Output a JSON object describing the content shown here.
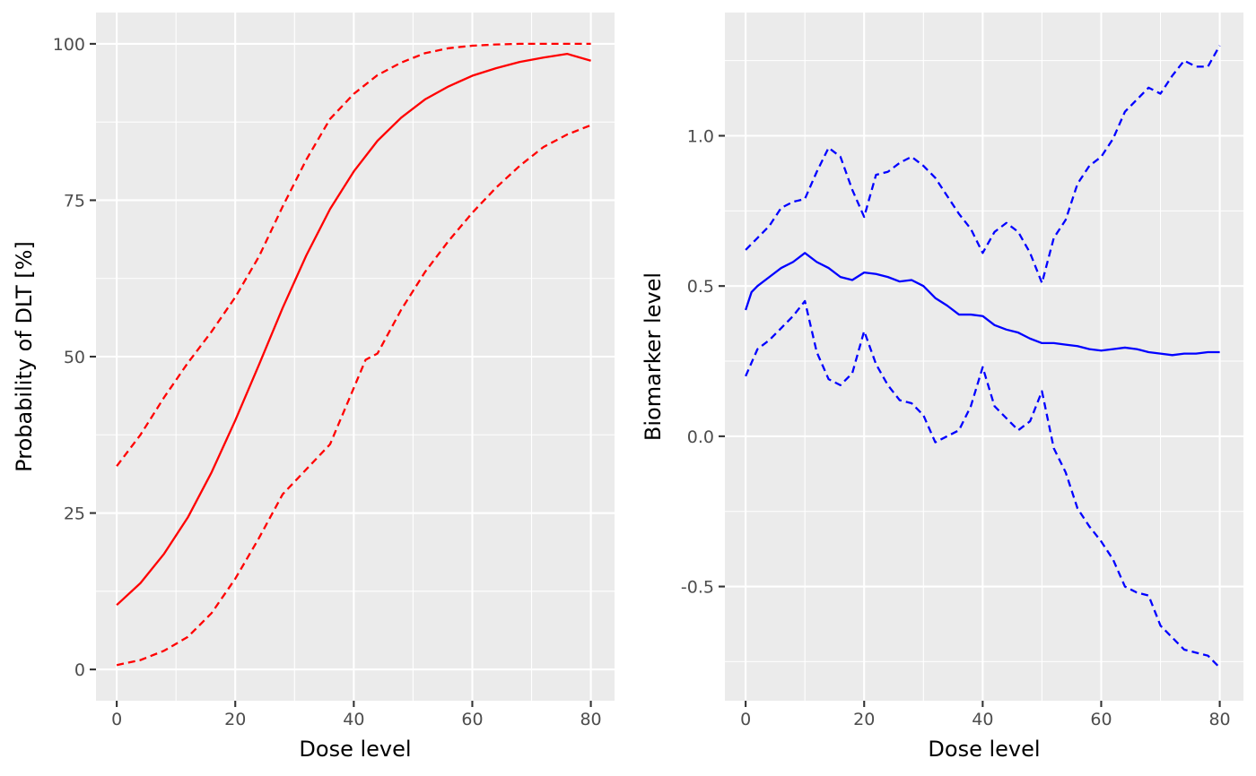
{
  "chart_data": [
    {
      "type": "line",
      "xlabel": "Dose level",
      "ylabel": "Probability of DLT [%]",
      "xlim": [
        -3.5,
        84
      ],
      "ylim": [
        -5,
        105
      ],
      "x_ticks": [
        0,
        20,
        40,
        60,
        80
      ],
      "y_ticks": [
        0,
        25,
        50,
        75,
        100
      ],
      "x_tick_labels": [
        "0",
        "20",
        "40",
        "60",
        "80"
      ],
      "y_tick_labels": [
        "0",
        "25",
        "50",
        "75",
        "100"
      ],
      "grid": true,
      "legend": "none",
      "color": "#ff0000",
      "series": [
        {
          "style": "solid",
          "x": [
            0,
            4,
            8,
            12,
            16,
            20,
            24,
            28,
            32,
            36,
            40,
            44,
            48,
            52,
            56,
            60,
            64,
            68,
            72,
            76,
            80
          ],
          "values": [
            10.3,
            13.8,
            18.5,
            24.3,
            31.5,
            39.8,
            48.7,
            57.8,
            66.2,
            73.6,
            79.6,
            84.5,
            88.2,
            91.1,
            93.2,
            94.9,
            96.1,
            97.1,
            97.8,
            98.4,
            97.3
          ]
        },
        {
          "style": "dashed",
          "x": [
            0,
            4,
            8,
            12,
            16,
            20,
            24,
            28,
            32,
            36,
            40,
            44,
            48,
            52,
            56,
            60,
            64,
            68,
            72,
            76,
            80
          ],
          "values": [
            32.5,
            37.5,
            43.5,
            49.0,
            54.0,
            59.5,
            66.0,
            74.0,
            81.5,
            88.0,
            92.0,
            95.0,
            97.0,
            98.5,
            99.3,
            99.7,
            99.9,
            100.0,
            100.0,
            100.0,
            100.0
          ]
        },
        {
          "style": "dashed",
          "x": [
            0,
            4,
            8,
            12,
            16,
            20,
            24,
            28,
            32,
            36,
            40,
            42,
            44,
            48,
            52,
            56,
            60,
            64,
            68,
            72,
            76,
            80
          ],
          "values": [
            0.7,
            1.5,
            3.0,
            5.2,
            9.0,
            14.5,
            21.0,
            28.0,
            32.0,
            36.0,
            45.0,
            49.5,
            50.5,
            57.5,
            63.5,
            68.5,
            73.0,
            77.0,
            80.5,
            83.5,
            85.5,
            87.0
          ]
        }
      ]
    },
    {
      "type": "line",
      "xlabel": "Dose level",
      "ylabel": "Biomarker level",
      "xlim": [
        -3.5,
        84
      ],
      "ylim": [
        -0.88,
        1.41
      ],
      "x_ticks": [
        0,
        20,
        40,
        60,
        80
      ],
      "y_ticks": [
        -0.5,
        0.0,
        0.5,
        1.0
      ],
      "x_tick_labels": [
        "0",
        "20",
        "40",
        "60",
        "80"
      ],
      "y_tick_labels": [
        "-0.5",
        "0.0",
        "0.5",
        "1.0"
      ],
      "grid": true,
      "legend": "none",
      "color": "#0000ff",
      "series": [
        {
          "style": "solid",
          "x": [
            0,
            1,
            2,
            4,
            6,
            8,
            10,
            12,
            14,
            16,
            18,
            20,
            22,
            24,
            26,
            28,
            30,
            32,
            34,
            36,
            38,
            40,
            42,
            44,
            46,
            48,
            50,
            52,
            54,
            56,
            58,
            60,
            62,
            64,
            66,
            68,
            70,
            72,
            74,
            76,
            78,
            80
          ],
          "values": [
            0.42,
            0.48,
            0.5,
            0.53,
            0.56,
            0.58,
            0.61,
            0.58,
            0.56,
            0.53,
            0.52,
            0.545,
            0.54,
            0.53,
            0.515,
            0.52,
            0.5,
            0.46,
            0.435,
            0.405,
            0.405,
            0.4,
            0.37,
            0.355,
            0.345,
            0.325,
            0.31,
            0.31,
            0.305,
            0.3,
            0.29,
            0.285,
            0.29,
            0.295,
            0.29,
            0.28,
            0.275,
            0.27,
            0.275,
            0.275,
            0.28,
            0.28
          ]
        },
        {
          "style": "dashed",
          "x": [
            0,
            2,
            4,
            6,
            8,
            10,
            12,
            14,
            16,
            18,
            20,
            22,
            24,
            26,
            28,
            30,
            32,
            34,
            36,
            38,
            40,
            42,
            44,
            46,
            48,
            50,
            52,
            54,
            56,
            58,
            60,
            62,
            64,
            66,
            68,
            70,
            72,
            74,
            76,
            78,
            80
          ],
          "values": [
            0.62,
            0.66,
            0.7,
            0.76,
            0.78,
            0.79,
            0.88,
            0.96,
            0.93,
            0.82,
            0.73,
            0.87,
            0.88,
            0.91,
            0.93,
            0.9,
            0.86,
            0.8,
            0.74,
            0.69,
            0.61,
            0.68,
            0.71,
            0.68,
            0.61,
            0.51,
            0.66,
            0.72,
            0.84,
            0.9,
            0.93,
            0.99,
            1.08,
            1.12,
            1.16,
            1.14,
            1.2,
            1.25,
            1.23,
            1.23,
            1.3
          ]
        },
        {
          "style": "dashed",
          "x": [
            0,
            2,
            4,
            6,
            8,
            10,
            12,
            14,
            16,
            18,
            20,
            22,
            24,
            26,
            28,
            30,
            32,
            34,
            36,
            38,
            40,
            42,
            44,
            46,
            48,
            50,
            52,
            54,
            56,
            58,
            60,
            62,
            64,
            66,
            68,
            70,
            72,
            74,
            76,
            78,
            80
          ],
          "values": [
            0.2,
            0.29,
            0.32,
            0.36,
            0.4,
            0.45,
            0.28,
            0.19,
            0.17,
            0.21,
            0.35,
            0.24,
            0.17,
            0.12,
            0.11,
            0.07,
            -0.02,
            0.0,
            0.02,
            0.1,
            0.23,
            0.1,
            0.06,
            0.02,
            0.05,
            0.15,
            -0.04,
            -0.12,
            -0.24,
            -0.3,
            -0.35,
            -0.41,
            -0.5,
            -0.52,
            -0.53,
            -0.63,
            -0.67,
            -0.71,
            -0.72,
            -0.73,
            -0.77
          ]
        }
      ]
    }
  ]
}
